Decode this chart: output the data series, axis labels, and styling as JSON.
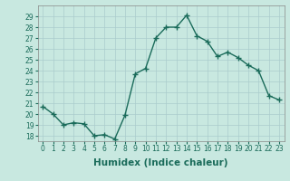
{
  "x": [
    0,
    1,
    2,
    3,
    4,
    5,
    6,
    7,
    8,
    9,
    10,
    11,
    12,
    13,
    14,
    15,
    16,
    17,
    18,
    19,
    20,
    21,
    22,
    23
  ],
  "y": [
    20.7,
    20.0,
    19.0,
    19.2,
    19.1,
    18.0,
    18.1,
    17.7,
    19.9,
    23.7,
    24.2,
    27.0,
    28.0,
    28.0,
    29.1,
    27.2,
    26.7,
    25.3,
    25.7,
    25.2,
    24.5,
    24.0,
    21.7,
    21.3
  ],
  "line_color": "#1a6b5a",
  "marker": "+",
  "marker_size": 4,
  "marker_linewidth": 1.0,
  "line_width": 1.0,
  "bg_color": "#c8e8e0",
  "grid_color": "#aacccc",
  "xlabel": "Humidex (Indice chaleur)",
  "ylim": [
    17.5,
    30.0
  ],
  "xlim": [
    -0.5,
    23.5
  ],
  "yticks": [
    18,
    19,
    20,
    21,
    22,
    23,
    24,
    25,
    26,
    27,
    28,
    29
  ],
  "xticks": [
    0,
    1,
    2,
    3,
    4,
    5,
    6,
    7,
    8,
    9,
    10,
    11,
    12,
    13,
    14,
    15,
    16,
    17,
    18,
    19,
    20,
    21,
    22,
    23
  ],
  "xtick_labels": [
    "0",
    "1",
    "2",
    "3",
    "4",
    "5",
    "6",
    "7",
    "8",
    "9",
    "10",
    "11",
    "12",
    "13",
    "14",
    "15",
    "16",
    "17",
    "18",
    "19",
    "20",
    "21",
    "22",
    "23"
  ],
  "ytick_labels": [
    "18",
    "19",
    "20",
    "21",
    "22",
    "23",
    "24",
    "25",
    "26",
    "27",
    "28",
    "29"
  ],
  "tick_fontsize": 5.5,
  "xlabel_fontsize": 7.5,
  "tick_color": "#1a6b5a",
  "label_color": "#1a6b5a"
}
